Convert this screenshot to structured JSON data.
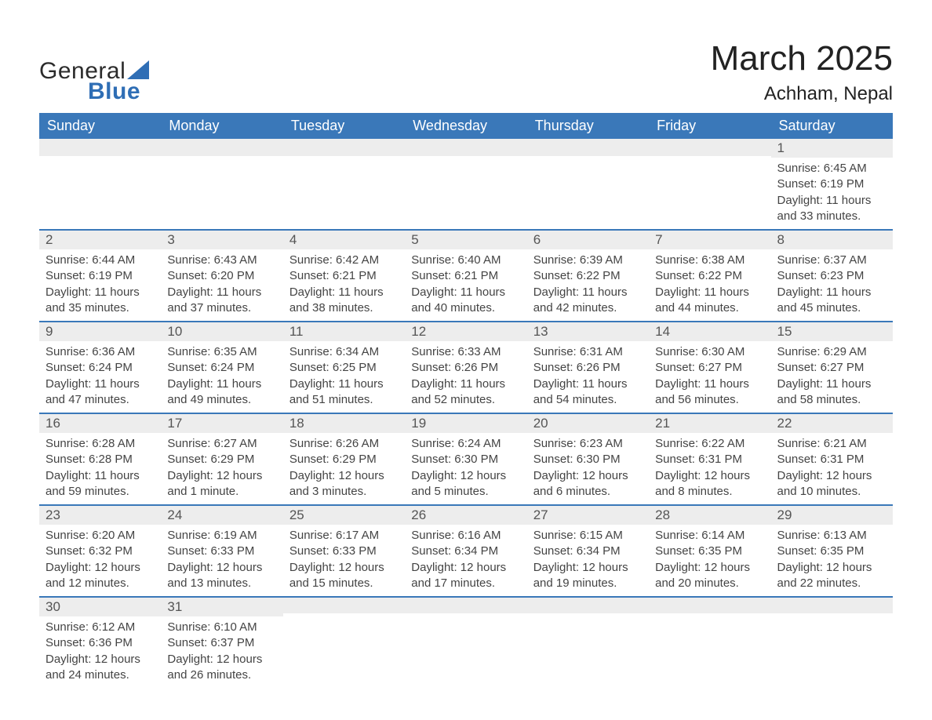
{
  "logo": {
    "text_general": "General",
    "text_blue": "Blue",
    "triangle_color": "#2f6eb5"
  },
  "title": "March 2025",
  "location": "Achham, Nepal",
  "colors": {
    "header_bg": "#3a78b9",
    "header_text": "#ffffff",
    "dayheader_bg": "#ededed",
    "dayheader_text": "#555555",
    "body_text": "#444444",
    "row_divider": "#3a78b9",
    "background": "#ffffff"
  },
  "typography": {
    "title_fontsize": 44,
    "location_fontsize": 24,
    "weekday_fontsize": 18,
    "daynum_fontsize": 17,
    "body_fontsize": 15,
    "font_family": "Arial"
  },
  "weekdays": [
    "Sunday",
    "Monday",
    "Tuesday",
    "Wednesday",
    "Thursday",
    "Friday",
    "Saturday"
  ],
  "weeks": [
    [
      null,
      null,
      null,
      null,
      null,
      null,
      {
        "num": "1",
        "sunrise": "Sunrise: 6:45 AM",
        "sunset": "Sunset: 6:19 PM",
        "daylight1": "Daylight: 11 hours",
        "daylight2": "and 33 minutes."
      }
    ],
    [
      {
        "num": "2",
        "sunrise": "Sunrise: 6:44 AM",
        "sunset": "Sunset: 6:19 PM",
        "daylight1": "Daylight: 11 hours",
        "daylight2": "and 35 minutes."
      },
      {
        "num": "3",
        "sunrise": "Sunrise: 6:43 AM",
        "sunset": "Sunset: 6:20 PM",
        "daylight1": "Daylight: 11 hours",
        "daylight2": "and 37 minutes."
      },
      {
        "num": "4",
        "sunrise": "Sunrise: 6:42 AM",
        "sunset": "Sunset: 6:21 PM",
        "daylight1": "Daylight: 11 hours",
        "daylight2": "and 38 minutes."
      },
      {
        "num": "5",
        "sunrise": "Sunrise: 6:40 AM",
        "sunset": "Sunset: 6:21 PM",
        "daylight1": "Daylight: 11 hours",
        "daylight2": "and 40 minutes."
      },
      {
        "num": "6",
        "sunrise": "Sunrise: 6:39 AM",
        "sunset": "Sunset: 6:22 PM",
        "daylight1": "Daylight: 11 hours",
        "daylight2": "and 42 minutes."
      },
      {
        "num": "7",
        "sunrise": "Sunrise: 6:38 AM",
        "sunset": "Sunset: 6:22 PM",
        "daylight1": "Daylight: 11 hours",
        "daylight2": "and 44 minutes."
      },
      {
        "num": "8",
        "sunrise": "Sunrise: 6:37 AM",
        "sunset": "Sunset: 6:23 PM",
        "daylight1": "Daylight: 11 hours",
        "daylight2": "and 45 minutes."
      }
    ],
    [
      {
        "num": "9",
        "sunrise": "Sunrise: 6:36 AM",
        "sunset": "Sunset: 6:24 PM",
        "daylight1": "Daylight: 11 hours",
        "daylight2": "and 47 minutes."
      },
      {
        "num": "10",
        "sunrise": "Sunrise: 6:35 AM",
        "sunset": "Sunset: 6:24 PM",
        "daylight1": "Daylight: 11 hours",
        "daylight2": "and 49 minutes."
      },
      {
        "num": "11",
        "sunrise": "Sunrise: 6:34 AM",
        "sunset": "Sunset: 6:25 PM",
        "daylight1": "Daylight: 11 hours",
        "daylight2": "and 51 minutes."
      },
      {
        "num": "12",
        "sunrise": "Sunrise: 6:33 AM",
        "sunset": "Sunset: 6:26 PM",
        "daylight1": "Daylight: 11 hours",
        "daylight2": "and 52 minutes."
      },
      {
        "num": "13",
        "sunrise": "Sunrise: 6:31 AM",
        "sunset": "Sunset: 6:26 PM",
        "daylight1": "Daylight: 11 hours",
        "daylight2": "and 54 minutes."
      },
      {
        "num": "14",
        "sunrise": "Sunrise: 6:30 AM",
        "sunset": "Sunset: 6:27 PM",
        "daylight1": "Daylight: 11 hours",
        "daylight2": "and 56 minutes."
      },
      {
        "num": "15",
        "sunrise": "Sunrise: 6:29 AM",
        "sunset": "Sunset: 6:27 PM",
        "daylight1": "Daylight: 11 hours",
        "daylight2": "and 58 minutes."
      }
    ],
    [
      {
        "num": "16",
        "sunrise": "Sunrise: 6:28 AM",
        "sunset": "Sunset: 6:28 PM",
        "daylight1": "Daylight: 11 hours",
        "daylight2": "and 59 minutes."
      },
      {
        "num": "17",
        "sunrise": "Sunrise: 6:27 AM",
        "sunset": "Sunset: 6:29 PM",
        "daylight1": "Daylight: 12 hours",
        "daylight2": "and 1 minute."
      },
      {
        "num": "18",
        "sunrise": "Sunrise: 6:26 AM",
        "sunset": "Sunset: 6:29 PM",
        "daylight1": "Daylight: 12 hours",
        "daylight2": "and 3 minutes."
      },
      {
        "num": "19",
        "sunrise": "Sunrise: 6:24 AM",
        "sunset": "Sunset: 6:30 PM",
        "daylight1": "Daylight: 12 hours",
        "daylight2": "and 5 minutes."
      },
      {
        "num": "20",
        "sunrise": "Sunrise: 6:23 AM",
        "sunset": "Sunset: 6:30 PM",
        "daylight1": "Daylight: 12 hours",
        "daylight2": "and 6 minutes."
      },
      {
        "num": "21",
        "sunrise": "Sunrise: 6:22 AM",
        "sunset": "Sunset: 6:31 PM",
        "daylight1": "Daylight: 12 hours",
        "daylight2": "and 8 minutes."
      },
      {
        "num": "22",
        "sunrise": "Sunrise: 6:21 AM",
        "sunset": "Sunset: 6:31 PM",
        "daylight1": "Daylight: 12 hours",
        "daylight2": "and 10 minutes."
      }
    ],
    [
      {
        "num": "23",
        "sunrise": "Sunrise: 6:20 AM",
        "sunset": "Sunset: 6:32 PM",
        "daylight1": "Daylight: 12 hours",
        "daylight2": "and 12 minutes."
      },
      {
        "num": "24",
        "sunrise": "Sunrise: 6:19 AM",
        "sunset": "Sunset: 6:33 PM",
        "daylight1": "Daylight: 12 hours",
        "daylight2": "and 13 minutes."
      },
      {
        "num": "25",
        "sunrise": "Sunrise: 6:17 AM",
        "sunset": "Sunset: 6:33 PM",
        "daylight1": "Daylight: 12 hours",
        "daylight2": "and 15 minutes."
      },
      {
        "num": "26",
        "sunrise": "Sunrise: 6:16 AM",
        "sunset": "Sunset: 6:34 PM",
        "daylight1": "Daylight: 12 hours",
        "daylight2": "and 17 minutes."
      },
      {
        "num": "27",
        "sunrise": "Sunrise: 6:15 AM",
        "sunset": "Sunset: 6:34 PM",
        "daylight1": "Daylight: 12 hours",
        "daylight2": "and 19 minutes."
      },
      {
        "num": "28",
        "sunrise": "Sunrise: 6:14 AM",
        "sunset": "Sunset: 6:35 PM",
        "daylight1": "Daylight: 12 hours",
        "daylight2": "and 20 minutes."
      },
      {
        "num": "29",
        "sunrise": "Sunrise: 6:13 AM",
        "sunset": "Sunset: 6:35 PM",
        "daylight1": "Daylight: 12 hours",
        "daylight2": "and 22 minutes."
      }
    ],
    [
      {
        "num": "30",
        "sunrise": "Sunrise: 6:12 AM",
        "sunset": "Sunset: 6:36 PM",
        "daylight1": "Daylight: 12 hours",
        "daylight2": "and 24 minutes."
      },
      {
        "num": "31",
        "sunrise": "Sunrise: 6:10 AM",
        "sunset": "Sunset: 6:37 PM",
        "daylight1": "Daylight: 12 hours",
        "daylight2": "and 26 minutes."
      },
      null,
      null,
      null,
      null,
      null
    ]
  ]
}
